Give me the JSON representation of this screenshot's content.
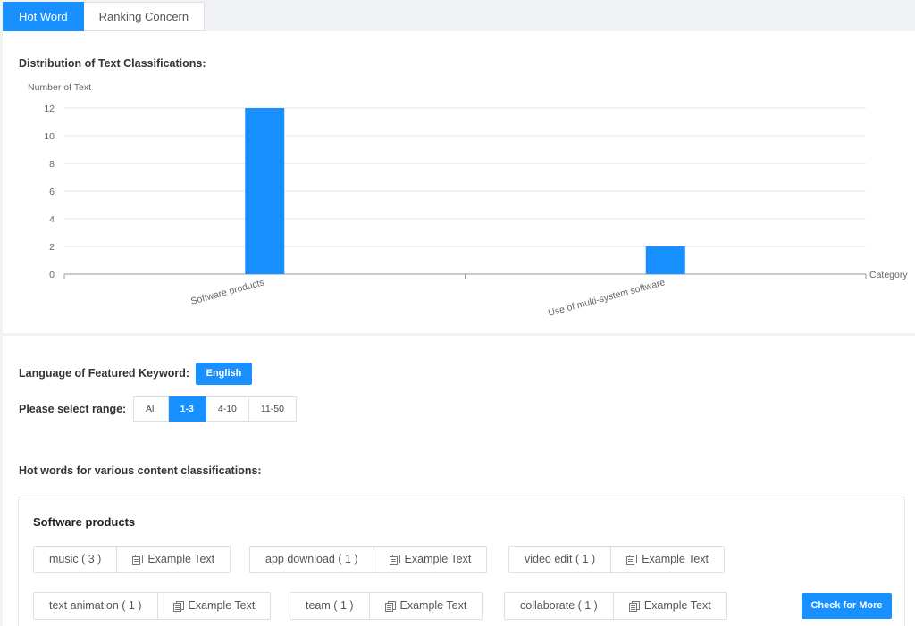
{
  "tabs": [
    {
      "label": "Hot Word",
      "active": true
    },
    {
      "label": "Ranking Concern",
      "active": false
    }
  ],
  "distribution": {
    "title": "Distribution of Text Classifications:"
  },
  "chart_data": {
    "type": "bar",
    "title": "",
    "ylabel": "Number of Text",
    "xlabel": "Category",
    "categories": [
      "Software products",
      "Use of multi-system software"
    ],
    "values": [
      12,
      2
    ],
    "ylim": [
      0,
      12
    ],
    "yticks": [
      0,
      2,
      4,
      6,
      8,
      10,
      12
    ],
    "bar_color": "#1890ff",
    "grid": true
  },
  "language": {
    "label": "Language of Featured Keyword:",
    "button": "English"
  },
  "range": {
    "label": "Please select range:",
    "options": [
      "All",
      "1-3",
      "4-10",
      "11-50"
    ],
    "selected": "1-3"
  },
  "hotwords": {
    "title": "Hot words for various content classifications:",
    "card_title": "Software products",
    "example_label": "Example Text",
    "example_icon": "copy-icon",
    "tags": [
      {
        "word": "music ( 3 )"
      },
      {
        "word": "app download ( 1 )"
      },
      {
        "word": "video edit ( 1 )"
      },
      {
        "word": "text animation ( 1 )"
      },
      {
        "word": "team ( 1 )"
      },
      {
        "word": "collaborate ( 1 )"
      }
    ],
    "more_button": "Check for More"
  },
  "colors": {
    "accent": "#1890ff"
  }
}
